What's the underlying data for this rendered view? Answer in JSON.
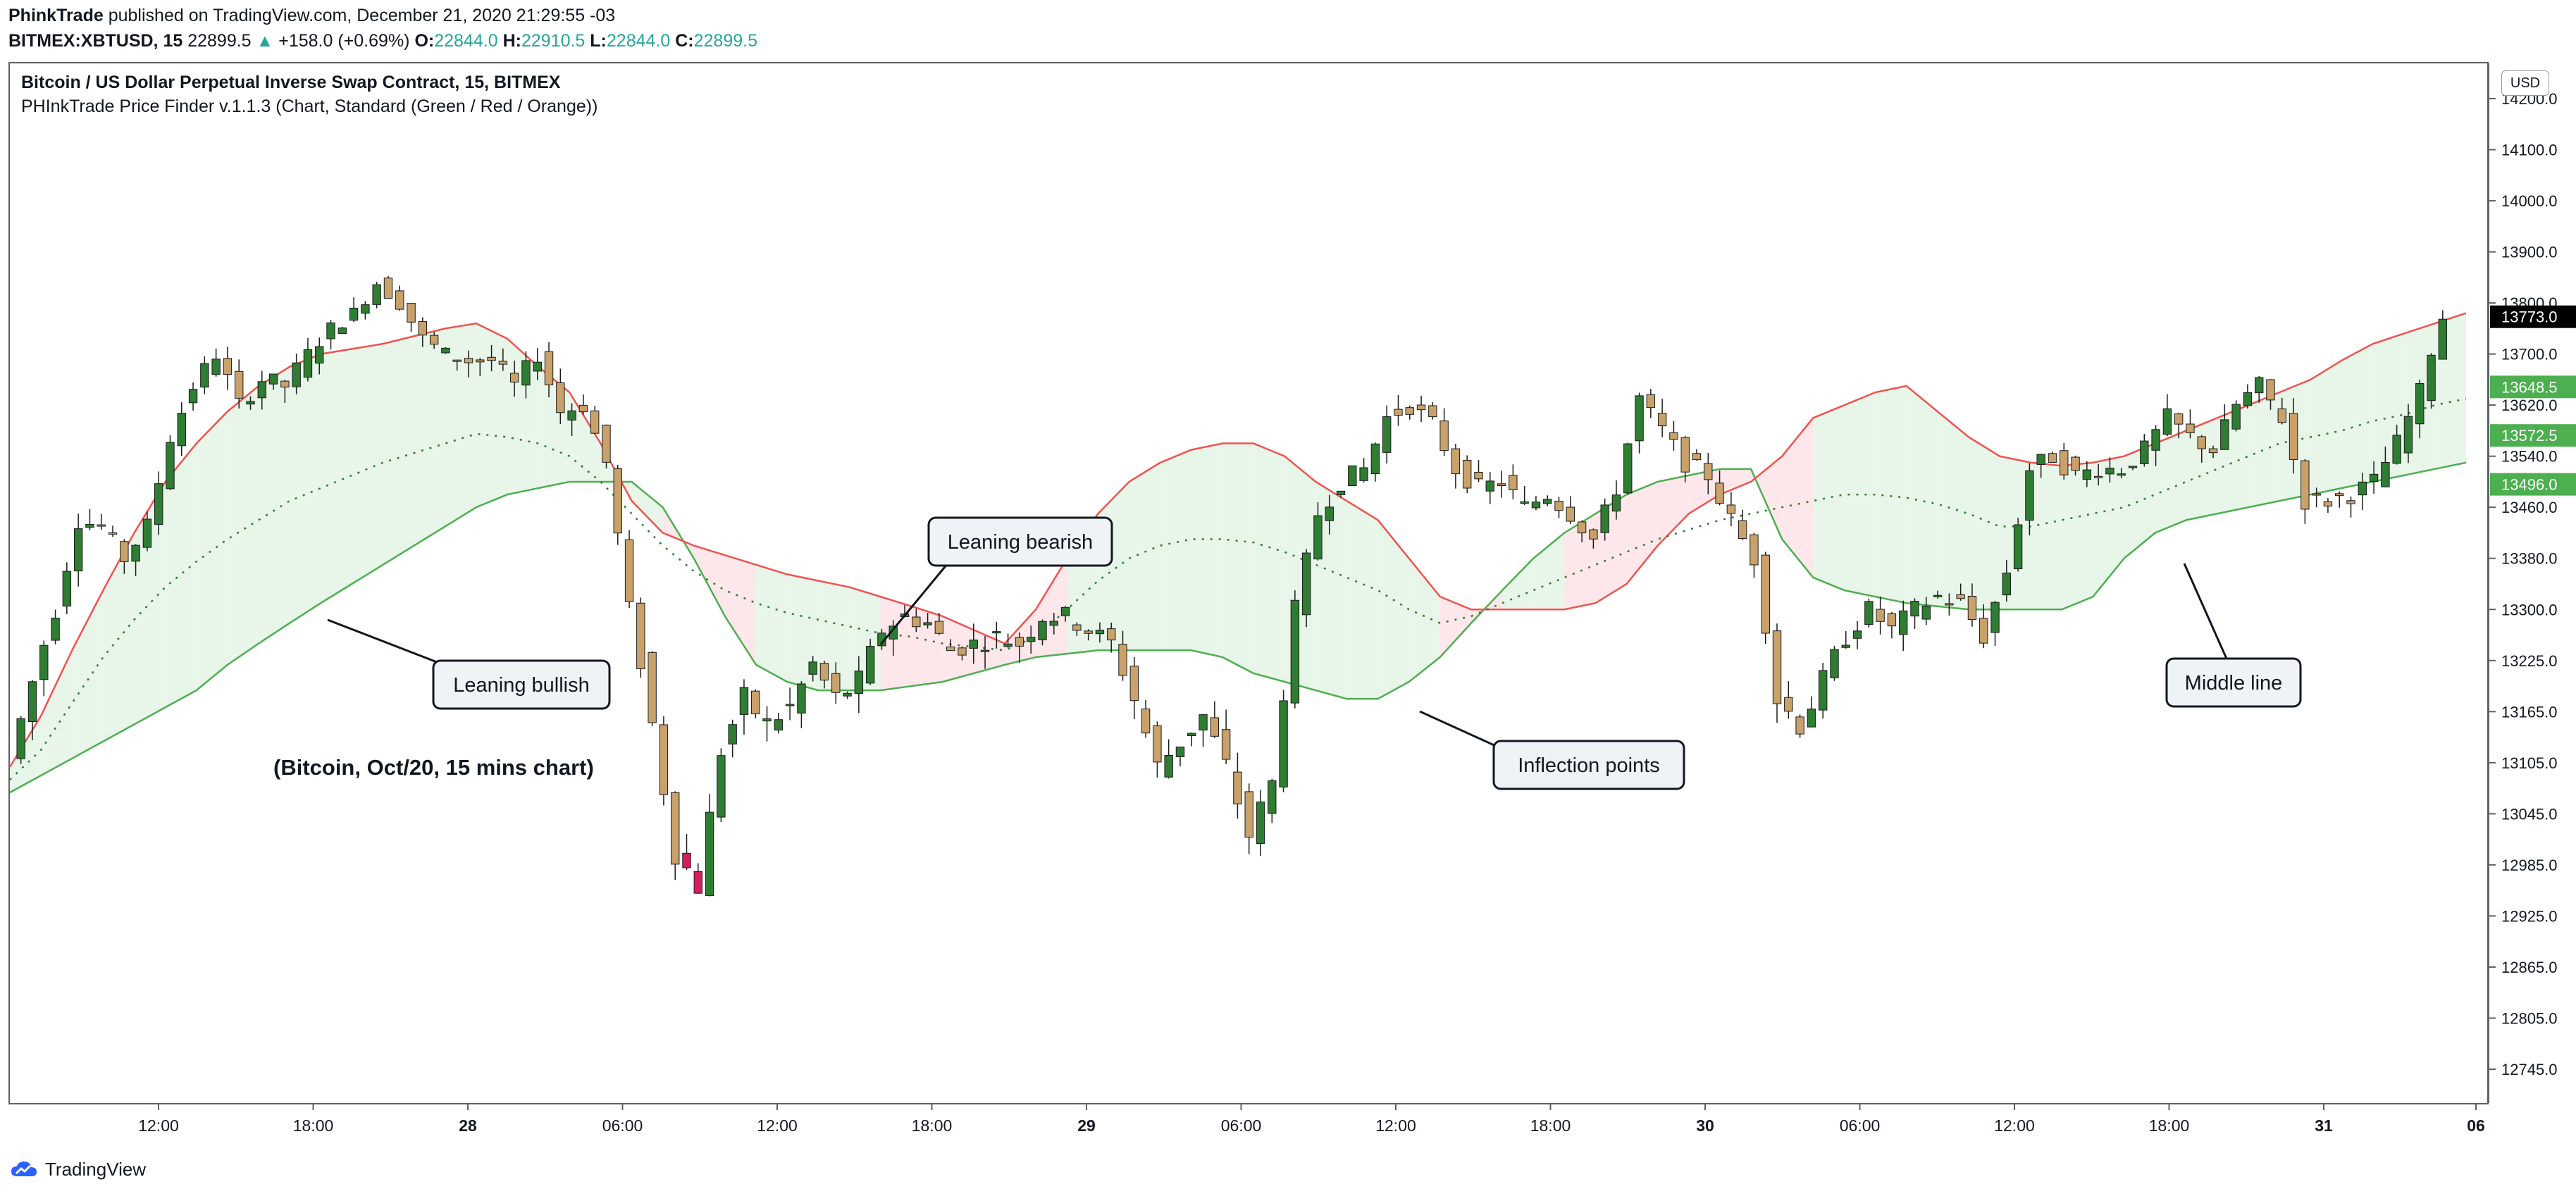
{
  "header": {
    "author": "PhinkTrade",
    "published_text": "published on TradingView.com, December 21, 2020 21:29:55 -03",
    "symbol": "BITMEX:XBTUSD, 15",
    "last": "22899.5",
    "change_arrow": "▲",
    "change": "+158.0 (+0.69%)",
    "o_label": "O:",
    "o_value": "22844.0",
    "h_label": "H:",
    "h_value": "22910.5",
    "l_label": "L:",
    "l_value": "22844.0",
    "c_label": "C:",
    "c_value": "22899.5"
  },
  "legend": {
    "line1": "Bitcoin / US Dollar Perpetual Inverse Swap Contract, 15, BITMEX",
    "line2": "PHInkTrade Price Finder v.1.1.3 (Chart, Standard (Green / Red / Orange))"
  },
  "currency_badge": "USD",
  "footer": {
    "brand": "TradingView",
    "icon": "tradingview-cloud-icon"
  },
  "colors": {
    "bull_candle": "#2e7d32",
    "bear_candle": "#c9a16a",
    "bear_candle_pink": "#d81b60",
    "bull_line": "#4caf50",
    "bull_fill": "#e8f5e9",
    "bear_line": "#ef5350",
    "bear_fill": "#fde7ea",
    "mid_bull": "#2e7d32",
    "mid_bear": "#e57373",
    "axis_text": "#131722"
  },
  "chart_data": {
    "type": "candlestick",
    "y_axis_labels": [
      "14200.0",
      "14100.0",
      "14000.0",
      "13900.0",
      "13800.0",
      "13700.0",
      "13620.0",
      "13540.0",
      "13460.0",
      "13380.0",
      "13300.0",
      "13225.0",
      "13165.0",
      "13105.0",
      "13045.0",
      "12985.0",
      "12925.0",
      "12865.0",
      "12805.0",
      "12745.0"
    ],
    "ylim": [
      12700,
      14220
    ],
    "x_axis_labels": [
      "12:00",
      "18:00",
      "28",
      "06:00",
      "12:00",
      "18:00",
      "29",
      "06:00",
      "12:00",
      "18:00",
      "30",
      "06:00",
      "12:00",
      "18:00",
      "31",
      "06"
    ],
    "price_badges": [
      {
        "value": "13773.0",
        "color": "#000000"
      },
      {
        "value": "13648.5",
        "color": "#4caf50"
      },
      {
        "value": "13572.5",
        "color": "#4caf50"
      },
      {
        "value": "13496.0",
        "color": "#4caf50"
      }
    ],
    "price_path": [
      13110,
      13200,
      13300,
      13440,
      13430,
      13380,
      13430,
      13570,
      13650,
      13700,
      13620,
      13660,
      13650,
      13700,
      13750,
      13780,
      13840,
      13800,
      13730,
      13700,
      13690,
      13690,
      13650,
      13700,
      13610,
      13620,
      13530,
      13300,
      13150,
      13000,
      12960,
      13120,
      13180,
      13150,
      13170,
      13220,
      13180,
      13200,
      13270,
      13290,
      13280,
      13240,
      13250,
      13260,
      13250,
      13290,
      13290,
      13270,
      13250,
      13180,
      13100,
      13130,
      13160,
      13100,
      13020,
      13080,
      13300,
      13450,
      13500,
      13520,
      13600,
      13620,
      13590,
      13520,
      13490,
      13500,
      13460,
      13480,
      13450,
      13410,
      13490,
      13630,
      13580,
      13530,
      13510,
      13440,
      13380,
      13180,
      13150,
      13200,
      13260,
      13300,
      13270,
      13300,
      13320,
      13310,
      13260,
      13360,
      13520,
      13540,
      13510,
      13520,
      13520,
      13550,
      13600,
      13570,
      13550,
      13620,
      13650,
      13600,
      13470,
      13470,
      13480,
      13500,
      13560,
      13640,
      13773
    ],
    "lower_band": [
      13070,
      13090,
      13110,
      13130,
      13150,
      13170,
      13190,
      13220,
      13250,
      13280,
      13310,
      13340,
      13370,
      13400,
      13430,
      13460,
      13480,
      13490,
      13500,
      13500,
      13500,
      13460,
      13380,
      13290,
      13220,
      13200,
      13190,
      13190,
      13190,
      13195,
      13200,
      13210,
      13220,
      13230,
      13235,
      13240,
      13240,
      13240,
      13240,
      13230,
      13210,
      13200,
      13190,
      13180,
      13180,
      13200,
      13230,
      13280,
      13330,
      13380,
      13420,
      13450,
      13480,
      13500,
      13510,
      13520,
      13520,
      13410,
      13350,
      13330,
      13320,
      13310,
      13305,
      13300,
      13300,
      13300,
      13300,
      13320,
      13380,
      13420,
      13440,
      13450,
      13460,
      13470,
      13480,
      13490,
      13500,
      13510,
      13520,
      13530
    ],
    "upper_band": [
      13100,
      13160,
      13240,
      13330,
      13420,
      13500,
      13560,
      13610,
      13650,
      13680,
      13700,
      13710,
      13720,
      13735,
      13750,
      13760,
      13730,
      13680,
      13640,
      13560,
      13470,
      13420,
      13400,
      13385,
      13370,
      13355,
      13345,
      13335,
      13320,
      13305,
      13290,
      13270,
      13250,
      13300,
      13380,
      13450,
      13500,
      13530,
      13550,
      13560,
      13560,
      13540,
      13500,
      13470,
      13440,
      13380,
      13320,
      13300,
      13300,
      13300,
      13300,
      13310,
      13340,
      13400,
      13450,
      13480,
      13500,
      13540,
      13600,
      13620,
      13640,
      13650,
      13610,
      13570,
      13540,
      13530,
      13525,
      13530,
      13540,
      13560,
      13580,
      13600,
      13620,
      13640,
      13660,
      13690,
      13720,
      13740,
      13760,
      13780
    ],
    "middle_line": [
      13085,
      13120,
      13175,
      13230,
      13285,
      13335,
      13375,
      13410,
      13440,
      13470,
      13490,
      13510,
      13530,
      13545,
      13560,
      13575,
      13570,
      13560,
      13540,
      13500,
      13450,
      13400,
      13360,
      13330,
      13310,
      13295,
      13285,
      13275,
      13265,
      13260,
      13250,
      13245,
      13240,
      13260,
      13300,
      13345,
      13380,
      13400,
      13410,
      13410,
      13405,
      13390,
      13370,
      13350,
      13330,
      13300,
      13280,
      13290,
      13310,
      13330,
      13350,
      13370,
      13390,
      13410,
      13425,
      13440,
      13450,
      13460,
      13470,
      13480,
      13480,
      13475,
      13465,
      13450,
      13430,
      13430,
      13440,
      13450,
      13460,
      13480,
      13500,
      13520,
      13540,
      13560,
      13570,
      13580,
      13595,
      13605,
      13620,
      13630
    ],
    "annotations": [
      {
        "text": "Leaning bullish"
      },
      {
        "text": "Leaning bearish"
      },
      {
        "text": "Inflection points"
      },
      {
        "text": "Middle line"
      },
      {
        "text": "(Bitcoin, Oct/20, 15 mins chart)"
      }
    ]
  }
}
